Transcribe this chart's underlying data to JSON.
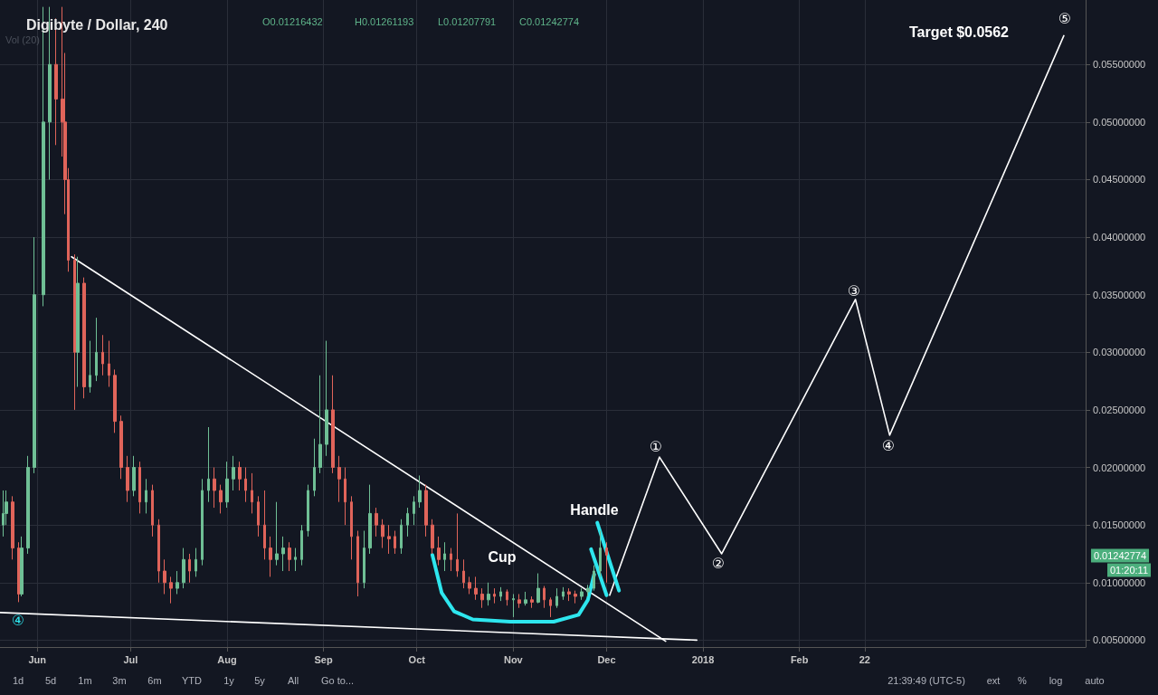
{
  "chart_data": {
    "type": "candlestick",
    "title": "Digibyte / Dollar, 240",
    "xlim": [
      "2017-05-20",
      "2018-05-04"
    ],
    "xticks": [
      {
        "value": "2017-06-01",
        "label": "Jun"
      },
      {
        "value": "2017-07-01",
        "label": "Jul"
      },
      {
        "value": "2017-08-01",
        "label": "Aug"
      },
      {
        "value": "2017-09-01",
        "label": "Sep"
      },
      {
        "value": "2017-10-01",
        "label": "Oct"
      },
      {
        "value": "2017-11-01",
        "label": "Nov"
      },
      {
        "value": "2017-12-01",
        "label": "Dec"
      },
      {
        "value": "2018-01-01",
        "label": "2018"
      },
      {
        "value": "2018-02-01",
        "label": "Feb"
      },
      {
        "value": "2018-02-22",
        "label": "22"
      }
    ],
    "ylim": [
      0.0044,
      0.0606
    ],
    "yticks": [
      {
        "value": 0.005,
        "label": "0.00500000"
      },
      {
        "value": 0.01,
        "label": "0.01000000"
      },
      {
        "value": 0.015,
        "label": "0.01500000"
      },
      {
        "value": 0.02,
        "label": "0.02000000"
      },
      {
        "value": 0.025,
        "label": "0.02500000"
      },
      {
        "value": 0.03,
        "label": "0.03000000"
      },
      {
        "value": 0.035,
        "label": "0.03500000"
      },
      {
        "value": 0.04,
        "label": "0.04000000"
      },
      {
        "value": 0.045,
        "label": "0.04500000"
      },
      {
        "value": 0.05,
        "label": "0.05000000"
      },
      {
        "value": 0.055,
        "label": "0.05500000"
      }
    ],
    "grid": true,
    "marker": "none",
    "line_style": "solid",
    "series": [
      {
        "colors": [
          "#6fbf95",
          "#6fbf95",
          "#e0645a",
          "#e0645a",
          "#6fbf95",
          "#6fbf95",
          "#6fbf95",
          "#6fbf95",
          "#6fbf95",
          "#e0645a",
          "#e0645a",
          "#e0645a",
          "#e0645a",
          "#e0645a",
          "#6fbf95",
          "#e0645a",
          "#6fbf95",
          "#6fbf95",
          "#e0645a",
          "#e0645a",
          "#e0645a",
          "#e0645a",
          "#e0645a",
          "#6fbf95",
          "#e0645a",
          "#6fbf95",
          "#e0645a",
          "#e0645a",
          "#e0645a",
          "#e0645a",
          "#6fbf95",
          "#6fbf95",
          "#e0645a",
          "#6fbf95",
          "#6fbf95",
          "#6fbf95",
          "#e0645a",
          "#e0645a",
          "#6fbf95",
          "#6fbf95",
          "#e0645a",
          "#e0645a",
          "#e0645a",
          "#e0645a",
          "#e0645a",
          "#e0645a",
          "#6fbf95",
          "#6fbf95",
          "#e0645a",
          "#6fbf95",
          "#6fbf95",
          "#6fbf95",
          "#6fbf95",
          "#6fbf95",
          "#6fbf95",
          "#e0645a",
          "#e0645a",
          "#e0645a",
          "#e0645a",
          "#e0645a",
          "#6fbf95",
          "#6fbf95",
          "#e0645a",
          "#e0645a",
          "#e0645a",
          "#e0645a",
          "#6fbf95",
          "#6fbf95",
          "#6fbf95",
          "#6fbf95",
          "#e0645a",
          "#e0645a",
          "#e0645a",
          "#6fbf95",
          "#e0645a",
          "#e0645a",
          "#e0645a",
          "#e0645a",
          "#e0645a",
          "#e0645a",
          "#6fbf95",
          "#e0645a",
          "#6fbf95",
          "#e0645a",
          "#6fbf95",
          "#e0645a",
          "#6fbf95",
          "#e0645a",
          "#6fbf95",
          "#e0645a",
          "#e0645a",
          "#6fbf95",
          "#6fbf95",
          "#e0645a",
          "#e0645a",
          "#6fbf95",
          "#6fbf95",
          "#6fbf95",
          "#6fbf95",
          "#e0645a"
        ],
        "x": [
          "2017-05-21",
          "2017-05-22",
          "2017-05-24",
          "2017-05-26",
          "2017-05-27",
          "2017-05-29",
          "2017-05-31",
          "2017-06-03",
          "2017-06-05",
          "2017-06-07",
          "2017-06-09",
          "2017-06-10",
          "2017-06-11",
          "2017-06-13",
          "2017-06-14",
          "2017-06-16",
          "2017-06-18",
          "2017-06-20",
          "2017-06-22",
          "2017-06-24",
          "2017-06-26",
          "2017-06-28",
          "2017-06-30",
          "2017-07-02",
          "2017-07-04",
          "2017-07-06",
          "2017-07-08",
          "2017-07-10",
          "2017-07-12",
          "2017-07-14",
          "2017-07-16",
          "2017-07-18",
          "2017-07-20",
          "2017-07-22",
          "2017-07-24",
          "2017-07-26",
          "2017-07-28",
          "2017-07-30",
          "2017-08-01",
          "2017-08-03",
          "2017-08-05",
          "2017-08-07",
          "2017-08-09",
          "2017-08-11",
          "2017-08-13",
          "2017-08-15",
          "2017-08-17",
          "2017-08-19",
          "2017-08-21",
          "2017-08-23",
          "2017-08-25",
          "2017-08-27",
          "2017-08-29",
          "2017-08-31",
          "2017-09-02",
          "2017-09-04",
          "2017-09-06",
          "2017-09-08",
          "2017-09-10",
          "2017-09-12",
          "2017-09-14",
          "2017-09-16",
          "2017-09-18",
          "2017-09-20",
          "2017-09-22",
          "2017-09-24",
          "2017-09-26",
          "2017-09-28",
          "2017-09-30",
          "2017-10-02",
          "2017-10-04",
          "2017-10-06",
          "2017-10-08",
          "2017-10-10",
          "2017-10-12",
          "2017-10-14",
          "2017-10-16",
          "2017-10-18",
          "2017-10-20",
          "2017-10-22",
          "2017-10-24",
          "2017-10-26",
          "2017-10-28",
          "2017-10-30",
          "2017-11-01",
          "2017-11-03",
          "2017-11-05",
          "2017-11-07",
          "2017-11-09",
          "2017-11-11",
          "2017-11-13",
          "2017-11-15",
          "2017-11-17",
          "2017-11-19",
          "2017-11-21",
          "2017-11-23",
          "2017-11-25",
          "2017-11-27",
          "2017-11-29",
          "2017-12-01"
        ],
        "ohlc": [
          [
            0.015,
            0.018,
            0.014,
            0.016
          ],
          [
            0.016,
            0.018,
            0.015,
            0.017
          ],
          [
            0.017,
            0.0175,
            0.012,
            0.013
          ],
          [
            0.013,
            0.0135,
            0.0083,
            0.009
          ],
          [
            0.009,
            0.014,
            0.0088,
            0.013
          ],
          [
            0.013,
            0.021,
            0.0125,
            0.02
          ],
          [
            0.02,
            0.04,
            0.0195,
            0.035
          ],
          [
            0.035,
            0.06,
            0.034,
            0.05
          ],
          [
            0.05,
            0.06,
            0.045,
            0.055
          ],
          [
            0.055,
            0.059,
            0.048,
            0.052
          ],
          [
            0.052,
            0.06,
            0.047,
            0.05
          ],
          [
            0.05,
            0.056,
            0.042,
            0.045
          ],
          [
            0.045,
            0.046,
            0.037,
            0.038
          ],
          [
            0.038,
            0.0385,
            0.025,
            0.03
          ],
          [
            0.03,
            0.0383,
            0.027,
            0.036
          ],
          [
            0.036,
            0.0365,
            0.026,
            0.027
          ],
          [
            0.027,
            0.031,
            0.0265,
            0.028
          ],
          [
            0.028,
            0.033,
            0.0275,
            0.03
          ],
          [
            0.03,
            0.0315,
            0.028,
            0.029
          ],
          [
            0.029,
            0.031,
            0.027,
            0.028
          ],
          [
            0.028,
            0.0285,
            0.023,
            0.024
          ],
          [
            0.024,
            0.0245,
            0.019,
            0.02
          ],
          [
            0.02,
            0.021,
            0.017,
            0.018
          ],
          [
            0.018,
            0.021,
            0.0175,
            0.02
          ],
          [
            0.02,
            0.0205,
            0.016,
            0.017
          ],
          [
            0.017,
            0.019,
            0.016,
            0.018
          ],
          [
            0.018,
            0.0185,
            0.014,
            0.015
          ],
          [
            0.015,
            0.0155,
            0.01,
            0.011
          ],
          [
            0.011,
            0.012,
            0.009,
            0.01
          ],
          [
            0.01,
            0.0105,
            0.0082,
            0.0095
          ],
          [
            0.0095,
            0.011,
            0.009,
            0.01
          ],
          [
            0.01,
            0.013,
            0.0095,
            0.012
          ],
          [
            0.012,
            0.0125,
            0.01,
            0.011
          ],
          [
            0.011,
            0.013,
            0.0105,
            0.012
          ],
          [
            0.012,
            0.019,
            0.0115,
            0.018
          ],
          [
            0.018,
            0.0235,
            0.017,
            0.019
          ],
          [
            0.019,
            0.02,
            0.0165,
            0.018
          ],
          [
            0.018,
            0.0185,
            0.016,
            0.017
          ],
          [
            0.017,
            0.0205,
            0.0165,
            0.019
          ],
          [
            0.019,
            0.021,
            0.018,
            0.02
          ],
          [
            0.02,
            0.0205,
            0.018,
            0.019
          ],
          [
            0.019,
            0.02,
            0.017,
            0.018
          ],
          [
            0.018,
            0.0195,
            0.016,
            0.017
          ],
          [
            0.017,
            0.0175,
            0.014,
            0.015
          ],
          [
            0.015,
            0.018,
            0.012,
            0.013
          ],
          [
            0.013,
            0.014,
            0.0105,
            0.012
          ],
          [
            0.012,
            0.017,
            0.0115,
            0.0125
          ],
          [
            0.0125,
            0.014,
            0.011,
            0.013
          ],
          [
            0.013,
            0.0135,
            0.011,
            0.012
          ],
          [
            0.012,
            0.013,
            0.011,
            0.0122
          ],
          [
            0.012,
            0.015,
            0.0115,
            0.0145
          ],
          [
            0.0145,
            0.0185,
            0.014,
            0.018
          ],
          [
            0.018,
            0.0225,
            0.0175,
            0.02
          ],
          [
            0.02,
            0.028,
            0.0195,
            0.022
          ],
          [
            0.022,
            0.031,
            0.021,
            0.025
          ],
          [
            0.025,
            0.028,
            0.0195,
            0.02
          ],
          [
            0.02,
            0.021,
            0.017,
            0.019
          ],
          [
            0.019,
            0.02,
            0.015,
            0.017
          ],
          [
            0.017,
            0.0175,
            0.012,
            0.014
          ],
          [
            0.014,
            0.0145,
            0.0088,
            0.01
          ],
          [
            0.01,
            0.0145,
            0.0095,
            0.013
          ],
          [
            0.013,
            0.0185,
            0.0125,
            0.016
          ],
          [
            0.016,
            0.0165,
            0.014,
            0.015
          ],
          [
            0.015,
            0.0155,
            0.013,
            0.014
          ],
          [
            0.014,
            0.015,
            0.0125,
            0.0138
          ],
          [
            0.014,
            0.0145,
            0.0125,
            0.013
          ],
          [
            0.013,
            0.0155,
            0.0125,
            0.015
          ],
          [
            0.015,
            0.0165,
            0.014,
            0.016
          ],
          [
            0.016,
            0.0175,
            0.015,
            0.017
          ],
          [
            0.017,
            0.0193,
            0.0165,
            0.018
          ],
          [
            0.018,
            0.0185,
            0.014,
            0.015
          ],
          [
            0.015,
            0.0155,
            0.0125,
            0.013
          ],
          [
            0.013,
            0.014,
            0.0115,
            0.012
          ],
          [
            0.012,
            0.0135,
            0.011,
            0.0125
          ],
          [
            0.0125,
            0.013,
            0.011,
            0.012
          ],
          [
            0.012,
            0.016,
            0.0105,
            0.011
          ],
          [
            0.011,
            0.012,
            0.0095,
            0.01
          ],
          [
            0.01,
            0.0105,
            0.009,
            0.0095
          ],
          [
            0.0095,
            0.0105,
            0.0085,
            0.009
          ],
          [
            0.009,
            0.0095,
            0.0078,
            0.0085
          ],
          [
            0.0085,
            0.01,
            0.008,
            0.009
          ],
          [
            0.009,
            0.0095,
            0.0082,
            0.0088
          ],
          [
            0.0088,
            0.0096,
            0.0084,
            0.0092
          ],
          [
            0.0092,
            0.0094,
            0.008,
            0.0085
          ],
          [
            0.0085,
            0.009,
            0.007,
            0.0086
          ],
          [
            0.0085,
            0.009,
            0.0078,
            0.0082
          ],
          [
            0.0082,
            0.0092,
            0.008,
            0.0085
          ],
          [
            0.0085,
            0.0088,
            0.0078,
            0.0083
          ],
          [
            0.0083,
            0.0108,
            0.0082,
            0.0095
          ],
          [
            0.0095,
            0.0097,
            0.0078,
            0.0085
          ],
          [
            0.0085,
            0.0087,
            0.007,
            0.008
          ],
          [
            0.008,
            0.0095,
            0.0078,
            0.0088
          ],
          [
            0.0088,
            0.0096,
            0.0085,
            0.0092
          ],
          [
            0.0092,
            0.0095,
            0.0084,
            0.009
          ],
          [
            0.009,
            0.0093,
            0.0082,
            0.0088
          ],
          [
            0.0088,
            0.0095,
            0.0085,
            0.0092
          ],
          [
            0.0092,
            0.0098,
            0.0088,
            0.0095
          ],
          [
            0.0095,
            0.0115,
            0.0093,
            0.011
          ],
          [
            0.011,
            0.0145,
            0.0105,
            0.013
          ],
          [
            0.013,
            0.0135,
            0.01,
            0.0124
          ]
        ]
      },
      {
        "type": "line",
        "color": "#ffffff",
        "x": [
          "2017-06-12",
          "2017-12-20"
        ],
        "values": [
          0.0383,
          0.0049
        ]
      },
      {
        "type": "line",
        "color": "#ffffff",
        "x": [
          "2017-05-20",
          "2017-12-30"
        ],
        "values": [
          0.0074,
          0.005
        ]
      },
      {
        "type": "line",
        "color": "#ffffff",
        "x": [
          "2017-12-02",
          "2017-12-18",
          "2018-01-07",
          "2018-02-19",
          "2018-03-02",
          "2018-04-27"
        ],
        "values": [
          0.0089,
          0.0209,
          0.0125,
          0.0346,
          0.0228,
          0.0575
        ]
      },
      {
        "type": "line",
        "color": "#2ee6ee",
        "x": [
          "2017-10-06",
          "2017-10-09",
          "2017-10-13",
          "2017-10-19",
          "2017-10-31",
          "2017-11-14",
          "2017-11-22",
          "2017-11-25",
          "2017-11-27"
        ],
        "values": [
          0.0124,
          0.0091,
          0.0075,
          0.0068,
          0.0066,
          0.0066,
          0.0072,
          0.0085,
          0.0107
        ]
      },
      {
        "type": "line",
        "color": "#2ee6ee",
        "x": [
          "2017-11-28",
          "2017-12-05"
        ],
        "values": [
          0.0152,
          0.0093
        ]
      },
      {
        "type": "line",
        "color": "#2ee6ee",
        "x": [
          "2017-11-26",
          "2017-12-01"
        ],
        "values": [
          0.0129,
          0.0089
        ]
      }
    ],
    "annotations": [
      "O0.01216432",
      "H0.01261193",
      "L0.01207791",
      "C0.01242774",
      "Vol (20)",
      "0.01242774",
      "01:20:11",
      "1d",
      "5d",
      "1m",
      "3m",
      "6m",
      "YTD",
      "1y",
      "5y",
      "All",
      "Go to...",
      "21:39:49 (UTC-5)",
      "ext",
      "%",
      "log",
      "auto",
      "Target $0.0562",
      "Cup",
      "Handle",
      "①",
      "②",
      "③",
      "④",
      "⑤",
      "④"
    ]
  }
}
